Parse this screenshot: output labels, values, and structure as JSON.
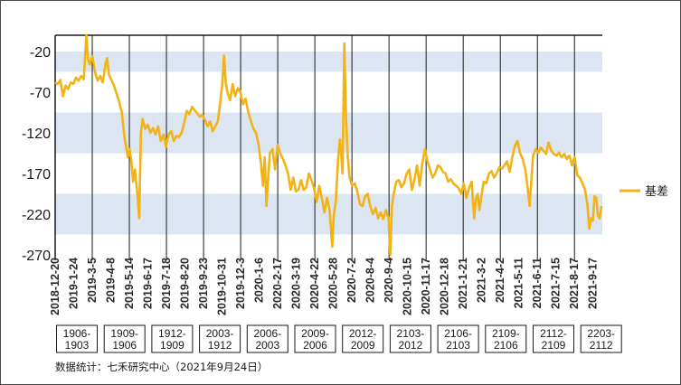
{
  "chart_data": {
    "type": "line",
    "title": "",
    "xlabel": "",
    "ylabel": "",
    "ylim": [
      -270,
      0
    ],
    "yticks": [
      -20,
      -70,
      -120,
      -170,
      -220,
      -270
    ],
    "band_color": "#dce6f2",
    "line_color": "#f2b316",
    "x_ticks": [
      "2018-12-20",
      "2019-1-24",
      "2019-3-5",
      "2019-4-8",
      "2019-5-14",
      "2019-6-17",
      "2019-7-18",
      "2019-8-20",
      "2019-9-23",
      "2019-10-31",
      "2019-12-3",
      "2020-1-6",
      "2020-2-17",
      "2020-3-19",
      "2020-4-22",
      "2020-5-28",
      "2020-7-2",
      "2020-8-4",
      "2020-9-4",
      "2020-10-15",
      "2020-11-17",
      "2020-12-18",
      "2021-1-21",
      "2021-3-2",
      "2021-4-2",
      "2021-5-11",
      "2021-6-11",
      "2021-7-15",
      "2021-8-17",
      "2021-9-17"
    ],
    "contract_boxes": [
      {
        "line1": "1906-",
        "line2": "1903"
      },
      {
        "line1": "1909-",
        "line2": "1906"
      },
      {
        "line1": "1912-",
        "line2": "1909"
      },
      {
        "line1": "2003-",
        "line2": "1912"
      },
      {
        "line1": "2006-",
        "line2": "2003"
      },
      {
        "line1": "2009-",
        "line2": "2006"
      },
      {
        "line1": "2012-",
        "line2": "2009"
      },
      {
        "line1": "2103-",
        "line2": "2012"
      },
      {
        "line1": "2106-",
        "line2": "2103"
      },
      {
        "line1": "2109-",
        "line2": "2106"
      },
      {
        "line1": "2112-",
        "line2": "2109"
      },
      {
        "line1": "2203-",
        "line2": "2112"
      }
    ],
    "series": [
      {
        "name": "基差",
        "points": [
          [
            0,
            -58
          ],
          [
            3,
            -60
          ],
          [
            6,
            -55
          ],
          [
            9,
            -75
          ],
          [
            12,
            -62
          ],
          [
            15,
            -66
          ],
          [
            18,
            -58
          ],
          [
            21,
            -60
          ],
          [
            24,
            -52
          ],
          [
            27,
            -56
          ],
          [
            30,
            -50
          ],
          [
            33,
            -54
          ],
          [
            36,
            0
          ],
          [
            38,
            -30
          ],
          [
            40,
            -36
          ],
          [
            43,
            -26
          ],
          [
            46,
            -45
          ],
          [
            49,
            -56
          ],
          [
            52,
            -50
          ],
          [
            55,
            -58
          ],
          [
            58,
            -36
          ],
          [
            60,
            -28
          ],
          [
            62,
            -48
          ],
          [
            65,
            -55
          ],
          [
            68,
            -62
          ],
          [
            71,
            -72
          ],
          [
            74,
            -82
          ],
          [
            77,
            -95
          ],
          [
            80,
            -125
          ],
          [
            82,
            -138
          ],
          [
            84,
            -150
          ],
          [
            86,
            -140
          ],
          [
            88,
            -155
          ],
          [
            90,
            -180
          ],
          [
            92,
            -165
          ],
          [
            95,
            -195
          ],
          [
            97,
            -225
          ],
          [
            99,
            -120
          ],
          [
            101,
            -103
          ],
          [
            104,
            -115
          ],
          [
            107,
            -110
          ],
          [
            110,
            -120
          ],
          [
            113,
            -114
          ],
          [
            116,
            -122
          ],
          [
            119,
            -112
          ],
          [
            122,
            -130
          ],
          [
            125,
            -122
          ],
          [
            128,
            -137
          ],
          [
            131,
            -122
          ],
          [
            134,
            -118
          ],
          [
            137,
            -130
          ],
          [
            140,
            -124
          ],
          [
            143,
            -125
          ],
          [
            146,
            -120
          ],
          [
            149,
            -108
          ],
          [
            152,
            -93
          ],
          [
            155,
            -97
          ],
          [
            158,
            -88
          ],
          [
            161,
            -92
          ],
          [
            164,
            -96
          ],
          [
            167,
            -100
          ],
          [
            170,
            -98
          ],
          [
            173,
            -104
          ],
          [
            176,
            -112
          ],
          [
            179,
            -106
          ],
          [
            182,
            -118
          ],
          [
            185,
            -112
          ],
          [
            188,
            -105
          ],
          [
            191,
            -80
          ],
          [
            193,
            -60
          ],
          [
            195,
            -25
          ],
          [
            197,
            -58
          ],
          [
            199,
            -70
          ],
          [
            202,
            -80
          ],
          [
            205,
            -60
          ],
          [
            208,
            -75
          ],
          [
            211,
            -65
          ],
          [
            214,
            -70
          ],
          [
            217,
            -85
          ],
          [
            220,
            -78
          ],
          [
            223,
            -95
          ],
          [
            226,
            -105
          ],
          [
            229,
            -115
          ],
          [
            232,
            -120
          ],
          [
            235,
            -135
          ],
          [
            238,
            -160
          ],
          [
            240,
            -185
          ],
          [
            242,
            -150
          ],
          [
            244,
            -210
          ],
          [
            246,
            -175
          ],
          [
            248,
            -145
          ],
          [
            251,
            -140
          ],
          [
            254,
            -165
          ],
          [
            257,
            -135
          ],
          [
            260,
            -145
          ],
          [
            263,
            -152
          ],
          [
            266,
            -160
          ],
          [
            269,
            -170
          ],
          [
            272,
            -190
          ],
          [
            275,
            -175
          ],
          [
            278,
            -192
          ],
          [
            281,
            -190
          ],
          [
            284,
            -178
          ],
          [
            287,
            -190
          ],
          [
            290,
            -187
          ],
          [
            293,
            -170
          ],
          [
            296,
            -178
          ],
          [
            299,
            -188
          ],
          [
            302,
            -205
          ],
          [
            305,
            -185
          ],
          [
            308,
            -200
          ],
          [
            311,
            -218
          ],
          [
            314,
            -200
          ],
          [
            317,
            -215
          ],
          [
            320,
            -260
          ],
          [
            322,
            -220
          ],
          [
            324,
            -205
          ],
          [
            327,
            -150
          ],
          [
            329,
            -128
          ],
          [
            332,
            -170
          ],
          [
            334,
            -10
          ],
          [
            336,
            -100
          ],
          [
            338,
            -150
          ],
          [
            340,
            -175
          ],
          [
            343,
            -185
          ],
          [
            346,
            -182
          ],
          [
            349,
            -192
          ],
          [
            352,
            -208
          ],
          [
            355,
            -210
          ],
          [
            358,
            -198
          ],
          [
            361,
            -195
          ],
          [
            364,
            -210
          ],
          [
            367,
            -220
          ],
          [
            370,
            -212
          ],
          [
            373,
            -225
          ],
          [
            376,
            -218
          ],
          [
            379,
            -226
          ],
          [
            382,
            -215
          ],
          [
            385,
            -225
          ],
          [
            387,
            -270
          ],
          [
            389,
            -210
          ],
          [
            391,
            -195
          ],
          [
            394,
            -180
          ],
          [
            397,
            -178
          ],
          [
            400,
            -187
          ],
          [
            403,
            -182
          ],
          [
            406,
            -170
          ],
          [
            409,
            -165
          ],
          [
            412,
            -190
          ],
          [
            415,
            -178
          ],
          [
            418,
            -160
          ],
          [
            421,
            -185
          ],
          [
            424,
            -158
          ],
          [
            427,
            -140
          ],
          [
            430,
            -155
          ],
          [
            433,
            -165
          ],
          [
            436,
            -175
          ],
          [
            439,
            -170
          ],
          [
            442,
            -160
          ],
          [
            445,
            -162
          ],
          [
            448,
            -168
          ],
          [
            451,
            -170
          ],
          [
            454,
            -180
          ],
          [
            457,
            -177
          ],
          [
            460,
            -182
          ],
          [
            463,
            -185
          ],
          [
            466,
            -188
          ],
          [
            469,
            -195
          ],
          [
            472,
            -182
          ],
          [
            475,
            -200
          ],
          [
            478,
            -188
          ],
          [
            481,
            -180
          ],
          [
            484,
            -225
          ],
          [
            486,
            -200
          ],
          [
            488,
            -195
          ],
          [
            490,
            -215
          ],
          [
            492,
            -200
          ],
          [
            495,
            -180
          ],
          [
            498,
            -182
          ],
          [
            501,
            -170
          ],
          [
            504,
            -167
          ],
          [
            507,
            -175
          ],
          [
            510,
            -170
          ],
          [
            513,
            -162
          ],
          [
            516,
            -164
          ],
          [
            519,
            -160
          ],
          [
            522,
            -155
          ],
          [
            525,
            -168
          ],
          [
            528,
            -150
          ],
          [
            531,
            -136
          ],
          [
            534,
            -130
          ],
          [
            537,
            -145
          ],
          [
            540,
            -152
          ],
          [
            543,
            -165
          ],
          [
            546,
            -190
          ],
          [
            548,
            -210
          ],
          [
            550,
            -180
          ],
          [
            552,
            -148
          ],
          [
            555,
            -140
          ],
          [
            558,
            -145
          ],
          [
            561,
            -138
          ],
          [
            564,
            -142
          ],
          [
            567,
            -146
          ],
          [
            570,
            -132
          ],
          [
            573,
            -142
          ],
          [
            576,
            -146
          ],
          [
            579,
            -148
          ],
          [
            582,
            -144
          ],
          [
            585,
            -150
          ],
          [
            588,
            -146
          ],
          [
            591,
            -152
          ],
          [
            594,
            -148
          ],
          [
            597,
            -160
          ],
          [
            600,
            -150
          ],
          [
            603,
            -172
          ],
          [
            606,
            -175
          ],
          [
            609,
            -182
          ],
          [
            612,
            -190
          ],
          [
            615,
            -210
          ],
          [
            617,
            -238
          ],
          [
            619,
            -225
          ],
          [
            621,
            -228
          ],
          [
            623,
            -198
          ],
          [
            625,
            -200
          ],
          [
            627,
            -222
          ],
          [
            629,
            -225
          ],
          [
            631,
            -210
          ]
        ]
      }
    ]
  },
  "legend": {
    "label": "基差"
  },
  "source_note": "数据统计：七禾研究中心（2021年9月24日）"
}
